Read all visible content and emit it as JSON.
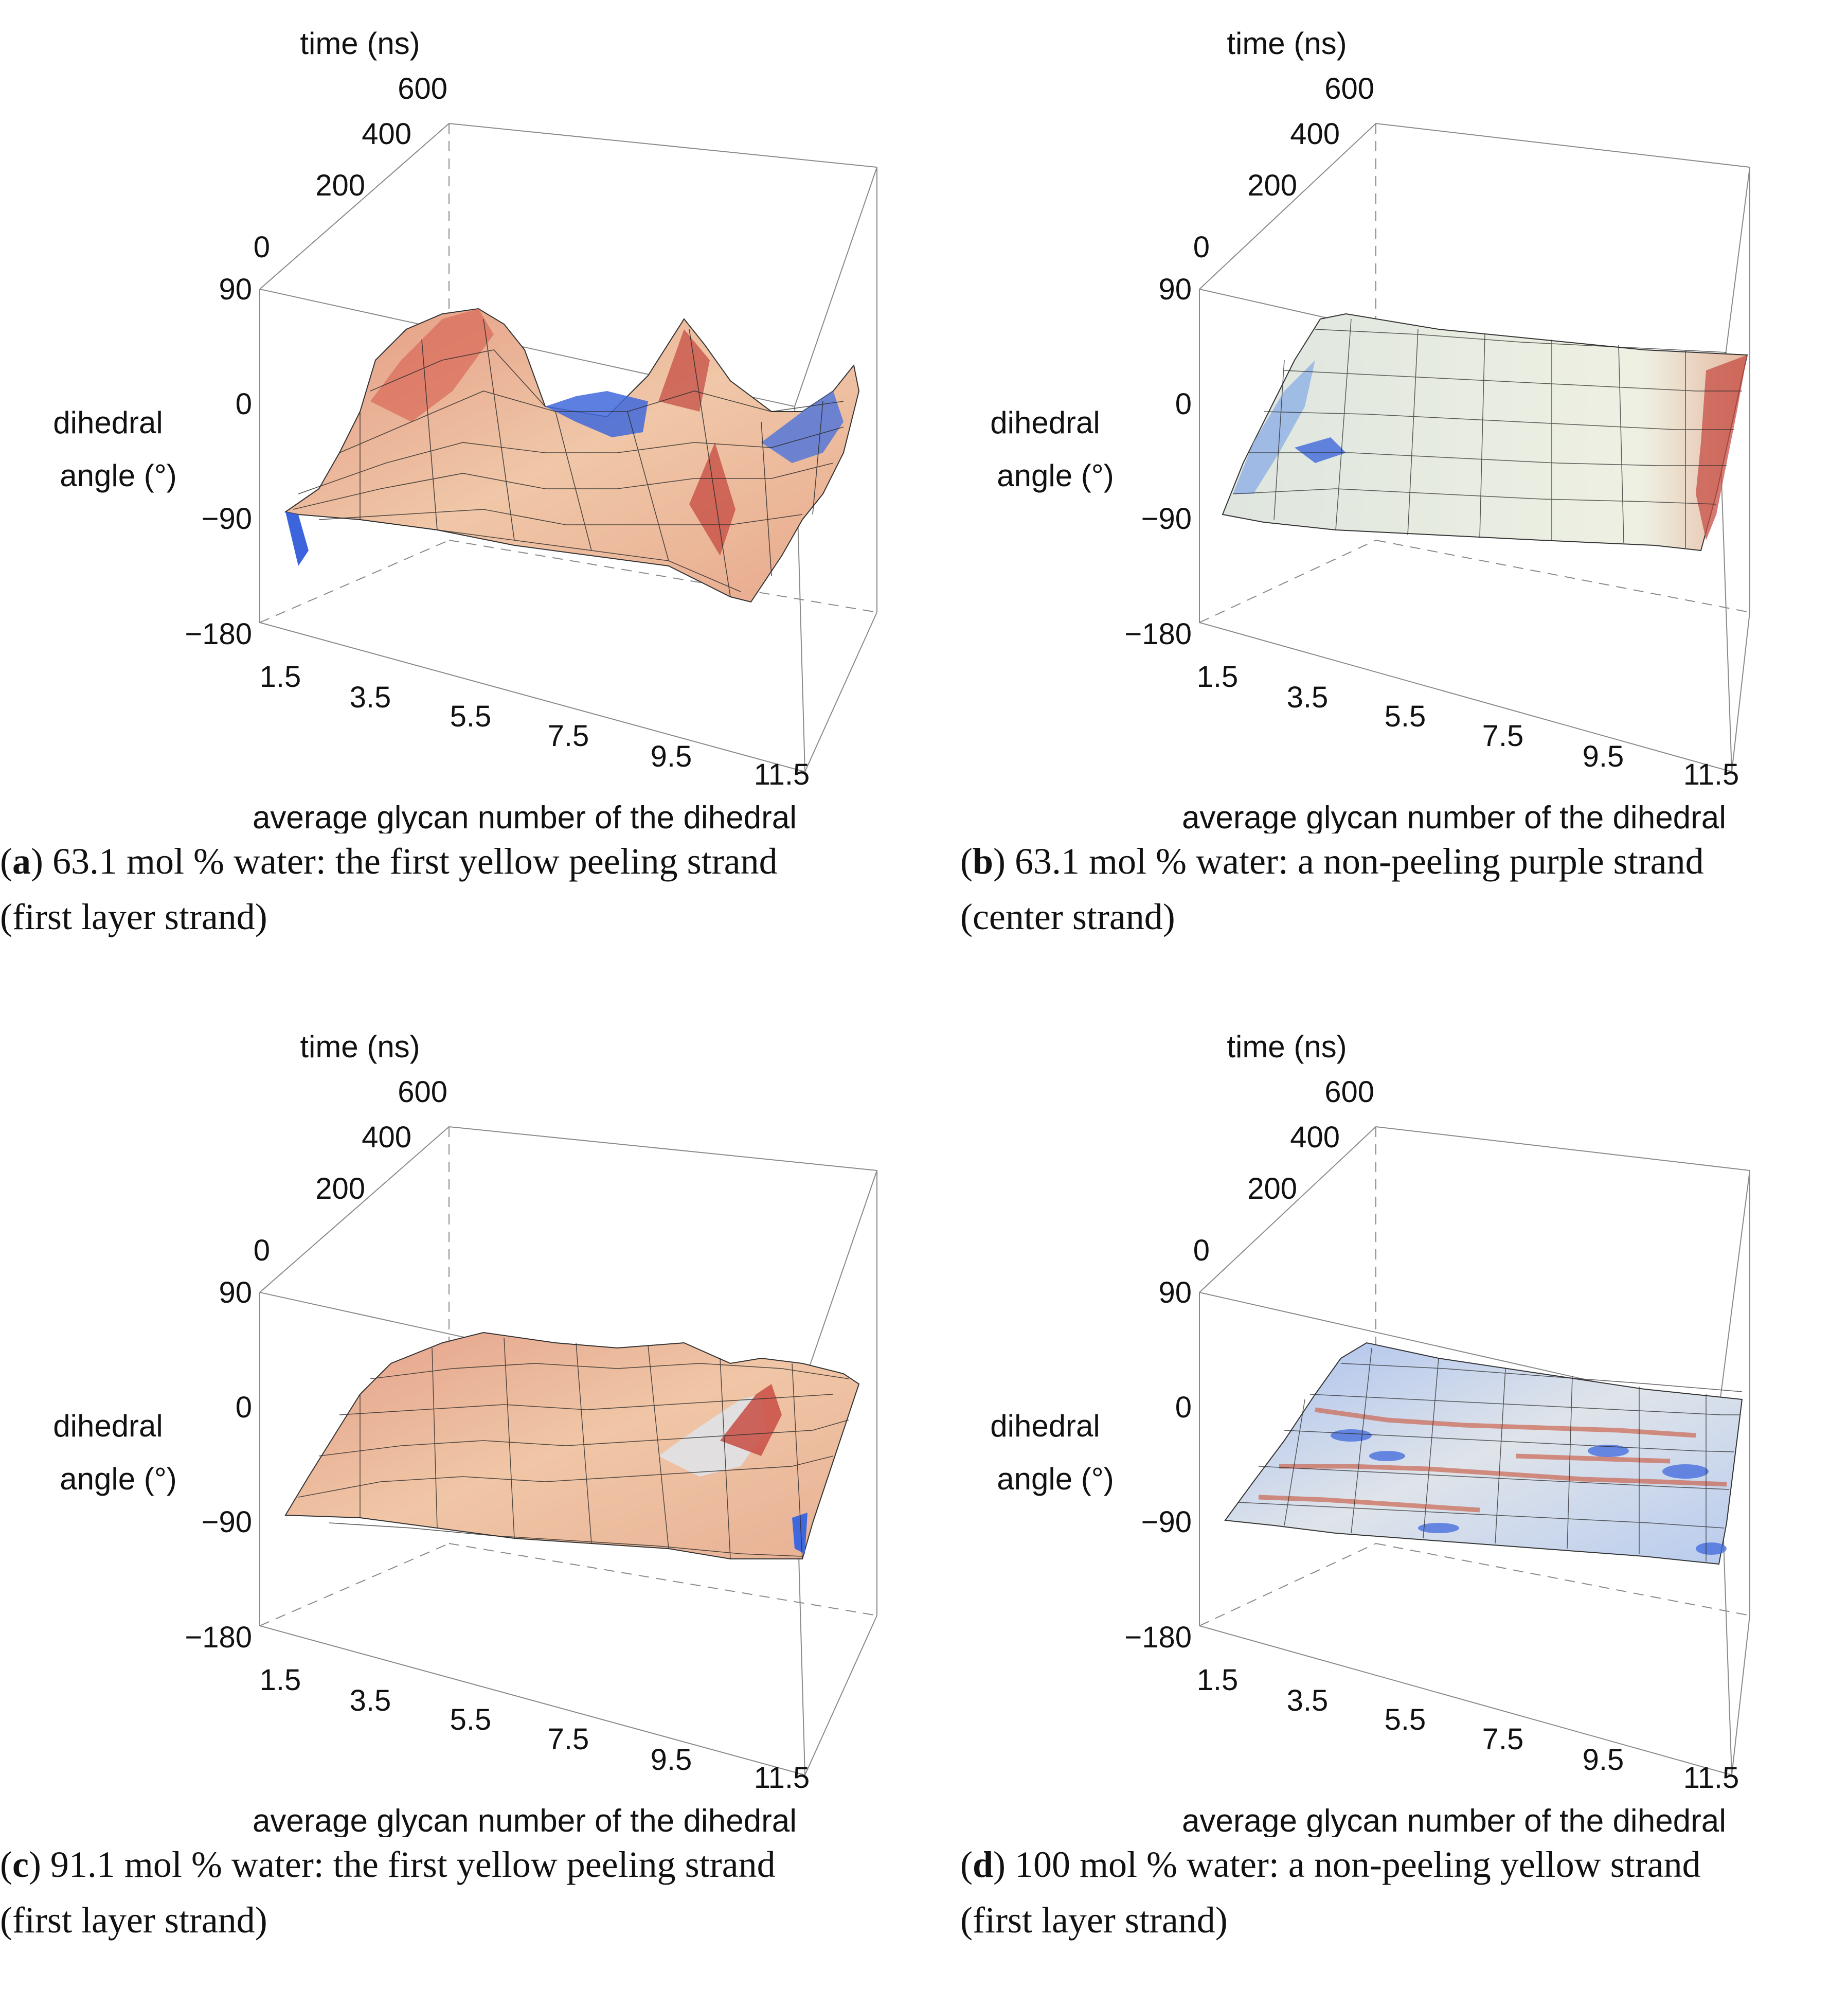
{
  "chart_data": [
    {
      "type": "surface3d",
      "panel": "a",
      "caption_label": "a",
      "caption_rest": ") 63.1 mol % water: the first yellow peeling strand",
      "caption_line2": "(first layer strand)",
      "xlabel": "average glycan number of the dihedral",
      "ylabel": "time (ns)",
      "zlabel_line1": "dihedral",
      "zlabel_line2": "angle (°)",
      "x_ticks": [
        "1.5",
        "3.5",
        "5.5",
        "7.5",
        "9.5",
        "11.5"
      ],
      "y_ticks": [
        "0",
        "200",
        "400",
        "600"
      ],
      "z_ticks": [
        "90",
        "0",
        "−90",
        "−180"
      ],
      "x_range": [
        1.5,
        11.5
      ],
      "y_range": [
        0,
        600
      ],
      "z_range": [
        -180,
        90
      ],
      "approx_base_angle": -70,
      "features": [
        {
          "x": 3.5,
          "t": 450,
          "angle": 30,
          "kind": "peak"
        },
        {
          "x": 6.0,
          "t": 200,
          "angle": -5,
          "kind": "peak"
        },
        {
          "x": 8.0,
          "t": 500,
          "angle": 20,
          "kind": "peak"
        },
        {
          "x": 9.5,
          "t": 150,
          "angle": -10,
          "kind": "peak"
        },
        {
          "x": 7.0,
          "t": 420,
          "angle": -60,
          "kind": "valley"
        },
        {
          "x": 10.5,
          "t": 400,
          "angle": -80,
          "kind": "valley"
        }
      ],
      "colors": {
        "low": "#3c64dc",
        "mid": "#f2ead8",
        "high": "#c44a40"
      }
    },
    {
      "type": "surface3d",
      "panel": "b",
      "caption_label": "b",
      "caption_rest": ") 63.1 mol % water:  a non-peeling purple strand",
      "caption_line2": "(center strand)",
      "xlabel": "average glycan number of the dihedral",
      "ylabel": "time (ns)",
      "zlabel_line1": "dihedral",
      "zlabel_line2": "angle (°)",
      "x_ticks": [
        "1.5",
        "3.5",
        "5.5",
        "7.5",
        "9.5",
        "11.5"
      ],
      "y_ticks": [
        "0",
        "200",
        "400",
        "600"
      ],
      "z_ticks": [
        "90",
        "0",
        "−90",
        "−180"
      ],
      "x_range": [
        1.5,
        11.5
      ],
      "y_range": [
        0,
        600
      ],
      "z_range": [
        -180,
        90
      ],
      "approx_base_angle": -60,
      "features": [],
      "colors": {
        "low": "#5a80d8",
        "mid": "#eef0e4",
        "high": "#c44a40"
      }
    },
    {
      "type": "surface3d",
      "panel": "c",
      "caption_label": "c",
      "caption_rest": ") 91.1 mol % water: the first yellow peeling strand",
      "caption_line2": "(first layer strand)",
      "xlabel": "average glycan number of the dihedral",
      "ylabel": "time (ns)",
      "zlabel_line1": "dihedral",
      "zlabel_line2": "angle (°)",
      "x_ticks": [
        "1.5",
        "3.5",
        "5.5",
        "7.5",
        "9.5",
        "11.5"
      ],
      "y_ticks": [
        "0",
        "200",
        "400",
        "600"
      ],
      "z_ticks": [
        "90",
        "0",
        "−90",
        "−180"
      ],
      "x_range": [
        1.5,
        11.5
      ],
      "y_range": [
        0,
        600
      ],
      "z_range": [
        -180,
        90
      ],
      "approx_base_angle": -60,
      "features": [
        {
          "x": 10.0,
          "t": 400,
          "angle": -20,
          "kind": "peak"
        },
        {
          "x": 9.8,
          "t": 200,
          "angle": -75,
          "kind": "valley"
        }
      ],
      "colors": {
        "low": "#5a80d8",
        "mid": "#f2dcc4",
        "high": "#c8604c"
      }
    },
    {
      "type": "surface3d",
      "panel": "d",
      "caption_label": "d",
      "caption_rest": ") 100 mol % water:  a non-peeling yellow strand",
      "caption_line2": "(first layer strand)",
      "xlabel": "average glycan number of the dihedral",
      "ylabel": "time (ns)",
      "zlabel_line1": "dihedral",
      "zlabel_line2": "angle (°)",
      "x_ticks": [
        "1.5",
        "3.5",
        "5.5",
        "7.5",
        "9.5",
        "11.5"
      ],
      "y_ticks": [
        "0",
        "200",
        "400",
        "600"
      ],
      "z_ticks": [
        "90",
        "0",
        "−90",
        "−180"
      ],
      "x_range": [
        1.5,
        11.5
      ],
      "y_range": [
        0,
        600
      ],
      "z_range": [
        -180,
        90
      ],
      "approx_base_angle": -60,
      "features": [],
      "colors": {
        "low": "#4c78d8",
        "mid": "#dfe6ea",
        "high": "#cc6650"
      }
    }
  ]
}
